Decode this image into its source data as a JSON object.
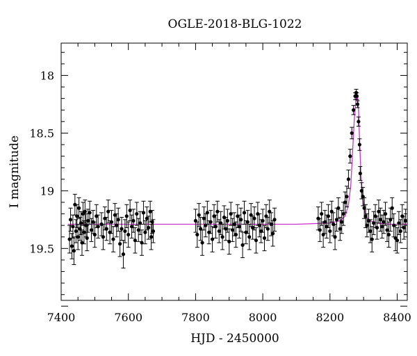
{
  "chart_data": {
    "type": "scatter",
    "title": "OGLE-2018-BLG-1022",
    "xlabel": "HJD - 2450000",
    "ylabel": "I magnitude",
    "xlim": [
      7400,
      8430
    ],
    "ylim": [
      19.95,
      17.72
    ],
    "y_inverted": true,
    "x_ticks": [
      "7400",
      "7600",
      "7800",
      "8000",
      "8200",
      "8400"
    ],
    "y_ticks": [
      "18",
      "18.5",
      "19",
      "19.5"
    ],
    "grid": false,
    "legend": "none",
    "colors": {
      "points": "#000000",
      "model": "#cc33cc"
    },
    "series": [
      {
        "values": [
          [
            7425,
            19.42,
            0.12
          ],
          [
            7428,
            19.25,
            0.1
          ],
          [
            7432,
            19.48,
            0.11
          ],
          [
            7435,
            19.31,
            0.1
          ],
          [
            7438,
            19.52,
            0.12
          ],
          [
            7441,
            19.12,
            0.09
          ],
          [
            7444,
            19.35,
            0.1
          ],
          [
            7447,
            19.22,
            0.1
          ],
          [
            7450,
            19.4,
            0.11
          ],
          [
            7453,
            19.15,
            0.09
          ],
          [
            7456,
            19.33,
            0.1
          ],
          [
            7459,
            19.28,
            0.1
          ],
          [
            7462,
            19.45,
            0.11
          ],
          [
            7465,
            19.2,
            0.1
          ],
          [
            7468,
            19.36,
            0.1
          ],
          [
            7471,
            19.18,
            0.1
          ],
          [
            7474,
            19.3,
            0.1
          ],
          [
            7477,
            19.41,
            0.11
          ],
          [
            7480,
            19.26,
            0.1
          ],
          [
            7485,
            19.19,
            0.1
          ],
          [
            7490,
            19.34,
            0.1
          ],
          [
            7495,
            19.27,
            0.1
          ],
          [
            7500,
            19.38,
            0.11
          ],
          [
            7505,
            19.22,
            0.1
          ],
          [
            7510,
            19.31,
            0.1
          ],
          [
            7520,
            19.29,
            0.1
          ],
          [
            7525,
            19.4,
            0.11
          ],
          [
            7530,
            19.24,
            0.1
          ],
          [
            7535,
            19.33,
            0.1
          ],
          [
            7540,
            19.18,
            0.1
          ],
          [
            7545,
            19.36,
            0.1
          ],
          [
            7550,
            19.27,
            0.1
          ],
          [
            7555,
            19.42,
            0.11
          ],
          [
            7560,
            19.21,
            0.1
          ],
          [
            7565,
            19.3,
            0.1
          ],
          [
            7570,
            19.25,
            0.1
          ],
          [
            7575,
            19.46,
            0.11
          ],
          [
            7580,
            19.33,
            0.1
          ],
          [
            7585,
            19.55,
            0.12
          ],
          [
            7590,
            19.35,
            0.1
          ],
          [
            7595,
            19.22,
            0.1
          ],
          [
            7600,
            19.38,
            0.11
          ],
          [
            7605,
            19.17,
            0.09
          ],
          [
            7610,
            19.31,
            0.1
          ],
          [
            7615,
            19.26,
            0.1
          ],
          [
            7620,
            19.43,
            0.11
          ],
          [
            7625,
            19.2,
            0.1
          ],
          [
            7630,
            19.34,
            0.1
          ],
          [
            7635,
            19.28,
            0.1
          ],
          [
            7640,
            19.45,
            0.11
          ],
          [
            7645,
            19.19,
            0.1
          ],
          [
            7650,
            19.36,
            0.1
          ],
          [
            7655,
            19.24,
            0.1
          ],
          [
            7660,
            19.32,
            0.1
          ],
          [
            7665,
            19.18,
            0.09
          ],
          [
            7668,
            19.4,
            0.11
          ],
          [
            7671,
            19.27,
            0.1
          ],
          [
            7674,
            19.35,
            0.1
          ],
          [
            7800,
            19.26,
            0.1
          ],
          [
            7805,
            19.38,
            0.11
          ],
          [
            7810,
            19.21,
            0.1
          ],
          [
            7815,
            19.33,
            0.1
          ],
          [
            7820,
            19.45,
            0.11
          ],
          [
            7825,
            19.24,
            0.1
          ],
          [
            7830,
            19.3,
            0.1
          ],
          [
            7835,
            19.19,
            0.1
          ],
          [
            7840,
            19.36,
            0.1
          ],
          [
            7845,
            19.27,
            0.1
          ],
          [
            7850,
            19.42,
            0.11
          ],
          [
            7855,
            19.22,
            0.1
          ],
          [
            7860,
            19.31,
            0.1
          ],
          [
            7865,
            19.18,
            0.09
          ],
          [
            7870,
            19.35,
            0.1
          ],
          [
            7875,
            19.28,
            0.1
          ],
          [
            7880,
            19.4,
            0.11
          ],
          [
            7885,
            19.23,
            0.1
          ],
          [
            7890,
            19.33,
            0.1
          ],
          [
            7895,
            19.26,
            0.1
          ],
          [
            7900,
            19.44,
            0.11
          ],
          [
            7905,
            19.2,
            0.1
          ],
          [
            7910,
            19.34,
            0.1
          ],
          [
            7915,
            19.29,
            0.1
          ],
          [
            7920,
            19.38,
            0.11
          ],
          [
            7925,
            19.22,
            0.1
          ],
          [
            7930,
            19.31,
            0.1
          ],
          [
            7935,
            19.25,
            0.1
          ],
          [
            7940,
            19.47,
            0.11
          ],
          [
            7945,
            19.19,
            0.1
          ],
          [
            7950,
            19.36,
            0.1
          ],
          [
            7955,
            19.27,
            0.1
          ],
          [
            7960,
            19.4,
            0.11
          ],
          [
            7965,
            19.21,
            0.1
          ],
          [
            7970,
            19.32,
            0.1
          ],
          [
            7975,
            19.24,
            0.1
          ],
          [
            7980,
            19.43,
            0.11
          ],
          [
            7985,
            19.2,
            0.1
          ],
          [
            7990,
            19.3,
            0.1
          ],
          [
            7995,
            19.35,
            0.1
          ],
          [
            8000,
            19.26,
            0.1
          ],
          [
            8005,
            19.41,
            0.11
          ],
          [
            8010,
            19.22,
            0.1
          ],
          [
            8015,
            19.33,
            0.1
          ],
          [
            8020,
            19.18,
            0.1
          ],
          [
            8025,
            19.29,
            0.1
          ],
          [
            8030,
            19.37,
            0.11
          ],
          [
            8035,
            19.25,
            0.1
          ],
          [
            8165,
            19.24,
            0.1
          ],
          [
            8170,
            19.34,
            0.1
          ],
          [
            8175,
            19.2,
            0.1
          ],
          [
            8180,
            19.38,
            0.11
          ],
          [
            8185,
            19.27,
            0.1
          ],
          [
            8190,
            19.31,
            0.1
          ],
          [
            8195,
            19.22,
            0.1
          ],
          [
            8200,
            19.35,
            0.1
          ],
          [
            8205,
            19.18,
            0.09
          ],
          [
            8210,
            19.29,
            0.1
          ],
          [
            8215,
            19.4,
            0.11
          ],
          [
            8220,
            19.25,
            0.1
          ],
          [
            8225,
            19.15,
            0.09
          ],
          [
            8230,
            19.33,
            0.1
          ],
          [
            8235,
            19.27,
            0.1
          ],
          [
            8240,
            19.2,
            0.1
          ],
          [
            8245,
            19.1,
            0.09
          ],
          [
            8250,
            19.05,
            0.09
          ],
          [
            8255,
            18.9,
            0.08
          ],
          [
            8260,
            18.7,
            0.06
          ],
          [
            8265,
            18.5,
            0.05
          ],
          [
            8270,
            18.3,
            0.04
          ],
          [
            8275,
            18.18,
            0.03
          ],
          [
            8278,
            18.15,
            0.03
          ],
          [
            8280,
            18.18,
            0.03
          ],
          [
            8282,
            18.25,
            0.03
          ],
          [
            8285,
            18.4,
            0.04
          ],
          [
            8288,
            18.6,
            0.05
          ],
          [
            8290,
            18.85,
            0.06
          ],
          [
            8294,
            19.0,
            0.07
          ],
          [
            8298,
            19.05,
            0.08
          ],
          [
            8302,
            19.15,
            0.09
          ],
          [
            8306,
            19.22,
            0.1
          ],
          [
            8310,
            19.3,
            0.1
          ],
          [
            8315,
            19.26,
            0.1
          ],
          [
            8320,
            19.35,
            0.1
          ],
          [
            8325,
            19.42,
            0.11
          ],
          [
            8330,
            19.28,
            0.1
          ],
          [
            8335,
            19.22,
            0.1
          ],
          [
            8340,
            19.32,
            0.1
          ],
          [
            8345,
            19.18,
            0.1
          ],
          [
            8350,
            19.25,
            0.1
          ],
          [
            8355,
            19.31,
            0.1
          ],
          [
            8360,
            19.27,
            0.1
          ],
          [
            8365,
            19.2,
            0.1
          ],
          [
            8370,
            19.34,
            0.1
          ],
          [
            8375,
            19.38,
            0.11
          ],
          [
            8380,
            19.25,
            0.1
          ],
          [
            8385,
            19.15,
            0.09
          ],
          [
            8390,
            19.3,
            0.1
          ],
          [
            8395,
            19.41,
            0.11
          ],
          [
            8400,
            19.43,
            0.11
          ],
          [
            8405,
            19.28,
            0.1
          ],
          [
            8410,
            19.35,
            0.1
          ],
          [
            8415,
            19.22,
            0.1
          ],
          [
            8420,
            19.32,
            0.1
          ],
          [
            8425,
            19.26,
            0.1
          ]
        ]
      }
    ],
    "model": {
      "x": [
        7420,
        7800,
        8100,
        8200,
        8230,
        8245,
        8255,
        8262,
        8268,
        8272,
        8276,
        8280,
        8282,
        8285,
        8288,
        8292,
        8296,
        8300,
        8305,
        8312,
        8320,
        8340,
        8380,
        8430
      ],
      "y": [
        19.29,
        19.29,
        19.29,
        19.28,
        19.26,
        19.22,
        19.12,
        18.95,
        18.62,
        18.4,
        18.25,
        18.16,
        18.17,
        18.3,
        18.55,
        18.85,
        19.02,
        19.12,
        19.2,
        19.24,
        19.26,
        19.28,
        19.29,
        19.29
      ]
    }
  }
}
